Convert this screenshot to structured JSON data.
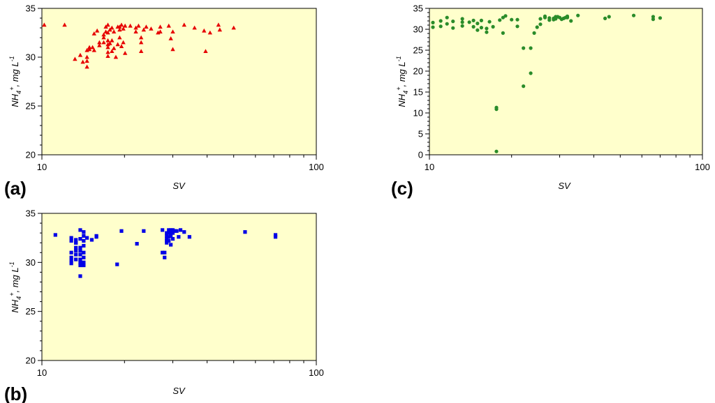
{
  "colors": {
    "plot_bg": "#ffffcc",
    "red": "#e60000",
    "green": "#2a8c2a",
    "blue": "#0000e6"
  },
  "chart_data": [
    {
      "id": "a",
      "panel_label": "(a)",
      "type": "scatter",
      "marker": "triangle",
      "color": "#e60000",
      "xlabel": "SV",
      "ylabel": {
        "base": "NH",
        "sub": "4",
        "sup": "+",
        "unit": ", mg L",
        "unit_sup": "-1"
      },
      "xscale": "log",
      "xlim": [
        10,
        100
      ],
      "ylim": [
        20,
        35
      ],
      "xticks": [
        10,
        100
      ],
      "yticks": [
        20,
        25,
        30,
        35
      ],
      "x": [
        10.2,
        12.1,
        13.2,
        13.8,
        14.1,
        14.6,
        14.6,
        14.6,
        14.6,
        14.9,
        14.9,
        15.3,
        15.5,
        15.5,
        15.9,
        16.2,
        16.2,
        16.8,
        16.8,
        16.8,
        17.1,
        17.1,
        17.4,
        17.4,
        17.4,
        17.4,
        17.4,
        17.4,
        17.4,
        17.7,
        17.7,
        18.0,
        18.0,
        18.0,
        18.3,
        18.3,
        18.6,
        18.9,
        18.9,
        19.2,
        19.2,
        19.2,
        19.5,
        19.5,
        19.8,
        19.8,
        20.1,
        20.1,
        21.0,
        22.0,
        22.0,
        22.5,
        23.0,
        23.0,
        23.0,
        23.5,
        24.0,
        25.0,
        26.5,
        27.0,
        27.0,
        29.0,
        29.5,
        30.0,
        30.0,
        33.0,
        36.0,
        39.0,
        39.5,
        41.0,
        44.0,
        44.5,
        50.0
      ],
      "values": [
        33.3,
        33.3,
        29.8,
        30.2,
        29.5,
        30.0,
        29.6,
        29.0,
        30.7,
        30.8,
        31.0,
        31.0,
        32.4,
        30.7,
        32.7,
        31.5,
        31.2,
        32.3,
        32.0,
        31.5,
        33.1,
        32.6,
        33.3,
        32.5,
        31.7,
        31.3,
        31.0,
        30.5,
        30.1,
        32.8,
        31.4,
        33.0,
        31.7,
        30.6,
        32.6,
        30.9,
        30.0,
        33.1,
        31.3,
        33.1,
        32.8,
        32.0,
        33.3,
        31.1,
        32.9,
        31.5,
        33.2,
        30.4,
        33.2,
        33.0,
        32.6,
        33.2,
        32.0,
        31.5,
        30.6,
        32.8,
        33.1,
        32.9,
        32.5,
        33.1,
        32.6,
        33.2,
        31.9,
        30.8,
        32.6,
        33.3,
        33.0,
        32.7,
        30.6,
        32.5,
        33.3,
        32.8,
        33.0
      ]
    },
    {
      "id": "b",
      "panel_label": "(b)",
      "type": "scatter",
      "marker": "square",
      "color": "#0000e6",
      "xlabel": "SV",
      "ylabel": {
        "base": "NH",
        "sub": "4",
        "sup": "+",
        "unit": ", mg L",
        "unit_sup": "-1"
      },
      "xscale": "log",
      "xlim": [
        10,
        100
      ],
      "ylim": [
        20,
        35
      ],
      "xticks": [
        10,
        100
      ],
      "yticks": [
        20,
        25,
        30,
        35
      ],
      "x": [
        11.2,
        12.8,
        12.8,
        12.8,
        12.8,
        12.8,
        12.8,
        13.3,
        13.3,
        13.3,
        13.3,
        13.3,
        13.3,
        13.3,
        13.8,
        13.8,
        13.8,
        13.8,
        13.8,
        13.8,
        13.8,
        13.8,
        13.8,
        14.2,
        14.2,
        14.2,
        14.2,
        14.2,
        14.2,
        14.2,
        14.2,
        14.2,
        14.6,
        15.2,
        15.8,
        15.8,
        18.8,
        19.5,
        22.2,
        23.5,
        27.5,
        27.5,
        28.0,
        28.0,
        28.5,
        28.5,
        28.5,
        28.5,
        28.5,
        29.0,
        29.0,
        29.0,
        29.0,
        29.5,
        29.5,
        29.5,
        29.5,
        30.0,
        30.0,
        30.0,
        30.5,
        31.0,
        31.5,
        32.0,
        33.0,
        34.5,
        55.0,
        71.0,
        71.0
      ],
      "values": [
        32.8,
        32.5,
        32.2,
        31.0,
        30.5,
        30.2,
        29.9,
        32.3,
        32.0,
        31.5,
        31.2,
        30.8,
        30.3,
        32.0,
        33.3,
        32.4,
        31.5,
        31.2,
        30.8,
        30.3,
        30.0,
        29.7,
        28.6,
        33.1,
        32.7,
        32.2,
        31.7,
        31.0,
        30.5,
        30.0,
        29.7,
        29.8,
        32.5,
        32.3,
        32.6,
        32.7,
        29.8,
        33.2,
        31.9,
        33.2,
        33.3,
        31.0,
        31.0,
        30.5,
        33.0,
        32.7,
        32.4,
        32.2,
        32.0,
        33.3,
        33.0,
        32.6,
        32.2,
        33.3,
        33.0,
        32.7,
        31.8,
        33.3,
        32.4,
        33.0,
        33.2,
        33.2,
        32.6,
        33.3,
        33.1,
        32.6,
        33.1,
        32.8,
        32.6
      ]
    },
    {
      "id": "c",
      "panel_label": "(c)",
      "type": "scatter",
      "marker": "circle",
      "color": "#2a8c2a",
      "xlabel": "SV",
      "ylabel": {
        "base": "NH",
        "sub": "4",
        "sup": "+",
        "unit": ", mg L",
        "unit_sup": "-1"
      },
      "xscale": "log",
      "xlim": [
        10,
        100
      ],
      "ylim": [
        0,
        35
      ],
      "xticks": [
        10,
        100
      ],
      "yticks": [
        0,
        5,
        10,
        15,
        20,
        25,
        30,
        35
      ],
      "x": [
        10.3,
        10.3,
        11.0,
        11.0,
        11.6,
        11.6,
        12.2,
        12.2,
        13.2,
        13.2,
        13.2,
        14.0,
        14.5,
        14.5,
        15.0,
        15.0,
        15.5,
        15.5,
        16.2,
        16.2,
        16.6,
        17.1,
        17.6,
        17.6,
        17.6,
        18.1,
        18.6,
        18.6,
        19.0,
        20.0,
        21.0,
        21.0,
        22.1,
        22.1,
        23.5,
        23.5,
        24.2,
        24.8,
        25.5,
        25.5,
        26.5,
        26.5,
        27.5,
        27.5,
        28.5,
        28.5,
        29.0,
        29.0,
        29.5,
        30.0,
        30.5,
        31.0,
        31.5,
        32.0,
        32.0,
        33.0,
        35.0,
        44.0,
        45.5,
        56.0,
        66.0,
        66.0,
        70.0
      ],
      "values": [
        31.6,
        30.5,
        32.0,
        30.7,
        32.8,
        31.3,
        31.9,
        30.3,
        32.5,
        31.7,
        30.8,
        31.7,
        30.6,
        32.1,
        29.8,
        31.4,
        30.4,
        32.1,
        30.2,
        29.3,
        31.8,
        30.6,
        0.8,
        10.9,
        11.3,
        32.2,
        32.8,
        29.1,
        33.2,
        32.3,
        32.3,
        30.7,
        25.5,
        16.4,
        25.5,
        19.5,
        29.1,
        30.5,
        32.5,
        31.2,
        33.1,
        32.8,
        32.2,
        32.7,
        32.6,
        32.3,
        33.0,
        32.5,
        33.0,
        32.8,
        32.4,
        32.6,
        32.8,
        33.1,
        32.8,
        32.0,
        33.3,
        32.6,
        33.0,
        33.3,
        33.0,
        32.4,
        32.7
      ]
    }
  ]
}
